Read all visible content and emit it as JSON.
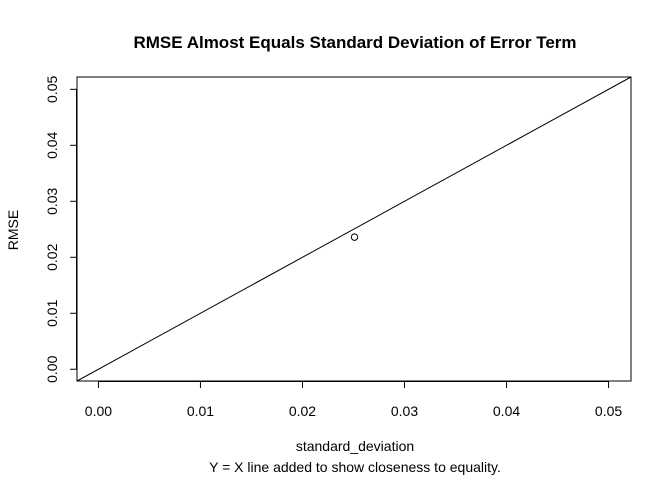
{
  "chart_data": {
    "type": "scatter",
    "title": "RMSE Almost Equals Standard Deviation of Error Term",
    "xlabel": "standard_deviation",
    "ylabel": "RMSE",
    "subtitle": "Y = X line added to show closeness to equality.",
    "xlim": [
      -0.0021,
      0.0522
    ],
    "ylim": [
      -0.0021,
      0.0522
    ],
    "x_ticks": [
      0.0,
      0.01,
      0.02,
      0.03,
      0.04,
      0.05
    ],
    "x_tick_labels": [
      "0.00",
      "0.01",
      "0.02",
      "0.03",
      "0.04",
      "0.05"
    ],
    "y_ticks": [
      0.0,
      0.01,
      0.02,
      0.03,
      0.04,
      0.05
    ],
    "y_tick_labels": [
      "0.00",
      "0.01",
      "0.02",
      "0.03",
      "0.04",
      "0.05"
    ],
    "points": [
      {
        "x": 0.0251,
        "y": 0.0236
      }
    ],
    "reference_line": {
      "label": "Y = X",
      "slope": 1,
      "intercept": 0
    },
    "grid": false,
    "marker": "open-circle",
    "colors": {
      "line": "#000000",
      "point": "#000000",
      "background": "#ffffff"
    }
  }
}
